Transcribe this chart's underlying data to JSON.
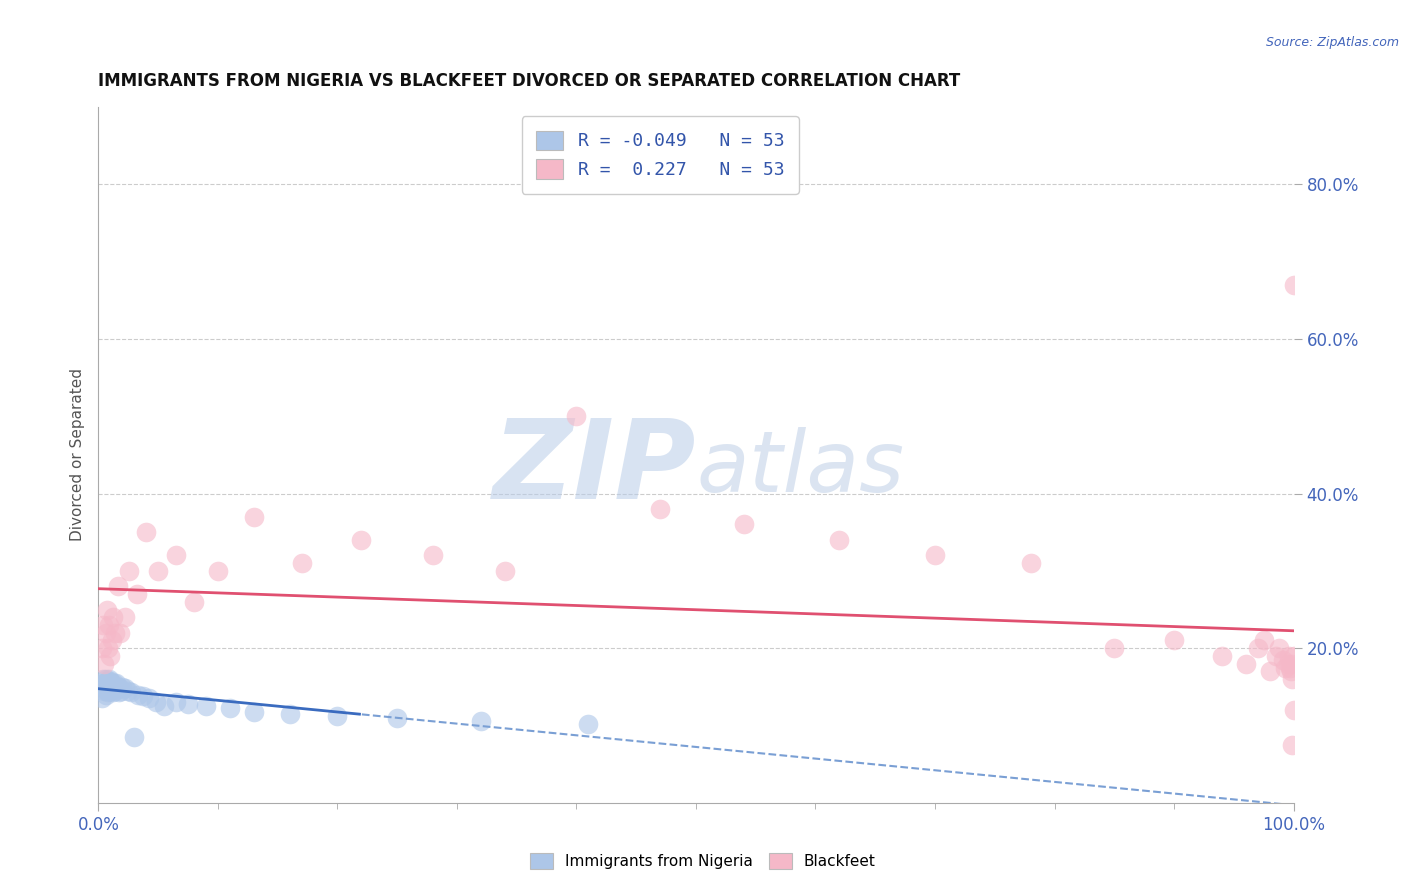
{
  "title": "IMMIGRANTS FROM NIGERIA VS BLACKFEET DIVORCED OR SEPARATED CORRELATION CHART",
  "source": "Source: ZipAtlas.com",
  "ylabel": "Divorced or Separated",
  "xlim": [
    0.0,
    1.0
  ],
  "ylim": [
    0.0,
    0.9
  ],
  "yticks": [
    0.2,
    0.4,
    0.6,
    0.8
  ],
  "ytick_labels": [
    "20.0%",
    "40.0%",
    "60.0%",
    "80.0%"
  ],
  "xtick_labels": [
    "0.0%",
    "100.0%"
  ],
  "legend_r_blue": "-0.049",
  "legend_r_pink": "0.227",
  "legend_n": "53",
  "blue_color": "#adc6e8",
  "pink_color": "#f5b8c8",
  "trend_blue_solid_color": "#3a6bbf",
  "trend_blue_dash_color": "#7a9fd4",
  "trend_pink_color": "#e05070",
  "watermark_zip_color": "#c8d8f0",
  "watermark_atlas_color": "#b0c8e8",
  "title_color": "#111111",
  "axis_color": "#4466bb",
  "grid_color": "#cccccc",
  "legend_text_color": "#3355aa",
  "blue_x": [
    0.003,
    0.004,
    0.004,
    0.005,
    0.005,
    0.006,
    0.006,
    0.006,
    0.007,
    0.007,
    0.007,
    0.008,
    0.008,
    0.008,
    0.009,
    0.009,
    0.01,
    0.01,
    0.01,
    0.011,
    0.011,
    0.012,
    0.012,
    0.013,
    0.013,
    0.014,
    0.014,
    0.015,
    0.015,
    0.016,
    0.017,
    0.018,
    0.019,
    0.02,
    0.022,
    0.025,
    0.027,
    0.03,
    0.033,
    0.037,
    0.042,
    0.048,
    0.055,
    0.065,
    0.075,
    0.09,
    0.11,
    0.13,
    0.16,
    0.2,
    0.25,
    0.32,
    0.41
  ],
  "blue_y": [
    0.135,
    0.15,
    0.16,
    0.145,
    0.155,
    0.14,
    0.148,
    0.16,
    0.145,
    0.152,
    0.158,
    0.143,
    0.15,
    0.155,
    0.148,
    0.16,
    0.145,
    0.152,
    0.158,
    0.148,
    0.155,
    0.143,
    0.15,
    0.148,
    0.155,
    0.15,
    0.145,
    0.148,
    0.155,
    0.15,
    0.143,
    0.148,
    0.145,
    0.15,
    0.148,
    0.145,
    0.143,
    0.085,
    0.14,
    0.138,
    0.135,
    0.13,
    0.125,
    0.13,
    0.128,
    0.125,
    0.122,
    0.118,
    0.115,
    0.112,
    0.11,
    0.106,
    0.102
  ],
  "pink_x": [
    0.003,
    0.004,
    0.005,
    0.006,
    0.007,
    0.008,
    0.009,
    0.01,
    0.011,
    0.012,
    0.014,
    0.016,
    0.018,
    0.022,
    0.026,
    0.032,
    0.04,
    0.05,
    0.065,
    0.08,
    0.1,
    0.13,
    0.17,
    0.22,
    0.28,
    0.34,
    0.4,
    0.47,
    0.54,
    0.62,
    0.7,
    0.78,
    0.85,
    0.9,
    0.94,
    0.96,
    0.97,
    0.975,
    0.98,
    0.985,
    0.988,
    0.991,
    0.993,
    0.995,
    0.996,
    0.997,
    0.998,
    0.999,
    0.999,
    0.999,
    1.0,
    1.0,
    1.0
  ],
  "pink_y": [
    0.2,
    0.23,
    0.18,
    0.22,
    0.25,
    0.2,
    0.23,
    0.19,
    0.21,
    0.24,
    0.22,
    0.28,
    0.22,
    0.24,
    0.3,
    0.27,
    0.35,
    0.3,
    0.32,
    0.26,
    0.3,
    0.37,
    0.31,
    0.34,
    0.32,
    0.3,
    0.5,
    0.38,
    0.36,
    0.34,
    0.32,
    0.31,
    0.2,
    0.21,
    0.19,
    0.18,
    0.2,
    0.21,
    0.17,
    0.19,
    0.2,
    0.185,
    0.175,
    0.18,
    0.19,
    0.175,
    0.17,
    0.18,
    0.075,
    0.16,
    0.67,
    0.19,
    0.12
  ]
}
